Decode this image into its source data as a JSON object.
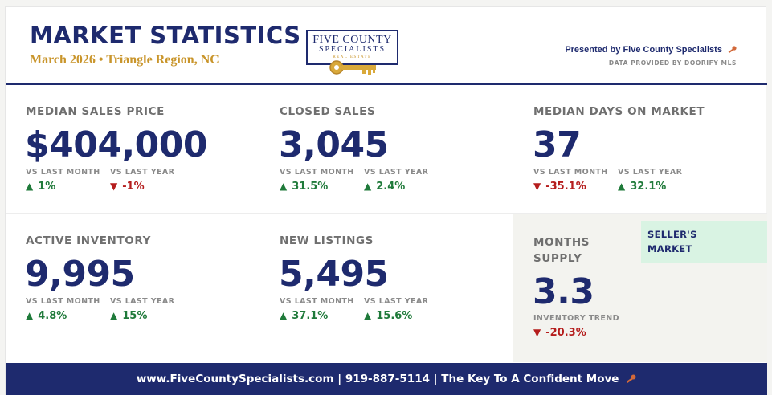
{
  "header": {
    "title": "MARKET STATISTICS",
    "subtitle": "March 2026 • Triangle Region, NC",
    "logo": {
      "line1": "FIVE COUNTY",
      "line2": "SPECIALISTS",
      "line3": "REAL ESTATE"
    },
    "presented_by": "Presented by Five County Specialists",
    "data_provided": "DATA PROVIDED BY DOORIFY MLS"
  },
  "stats": [
    {
      "label": "MEDIAN SALES PRICE",
      "value": "$404,000",
      "month_label": "VS LAST MONTH",
      "month_change": "1%",
      "month_dir": "up",
      "year_label": "VS LAST YEAR",
      "year_change": "-1%",
      "year_dir": "down"
    },
    {
      "label": "CLOSED SALES",
      "value": "3,045",
      "month_label": "VS LAST MONTH",
      "month_change": "31.5%",
      "month_dir": "up",
      "year_label": "VS LAST YEAR",
      "year_change": "2.4%",
      "year_dir": "up"
    },
    {
      "label": "MEDIAN DAYS ON MARKET",
      "value": "37",
      "month_label": "VS LAST MONTH",
      "month_change": "-35.1%",
      "month_dir": "down",
      "year_label": "VS LAST YEAR",
      "year_change": "32.1%",
      "year_dir": "up"
    },
    {
      "label": "ACTIVE INVENTORY",
      "value": "9,995",
      "month_label": "VS LAST MONTH",
      "month_change": "4.8%",
      "month_dir": "up",
      "year_label": "VS LAST YEAR",
      "year_change": "15%",
      "year_dir": "up"
    },
    {
      "label": "NEW LISTINGS",
      "value": "5,495",
      "month_label": "VS LAST MONTH",
      "month_change": "37.1%",
      "month_dir": "up",
      "year_label": "VS LAST YEAR",
      "year_change": "15.6%",
      "year_dir": "up"
    }
  ],
  "months_supply": {
    "label_line1": "MONTHS",
    "label_line2": "SUPPLY",
    "value": "3.3",
    "trend_label": "INVENTORY TREND",
    "trend_change": "-20.3%",
    "trend_dir": "down",
    "badge_line1": "SELLER'S",
    "badge_line2": "MARKET"
  },
  "footer": {
    "text": "www.FiveCountySpecialists.com | 919-887-5114  | The Key To A Confident Move"
  },
  "colors": {
    "navy": "#1e2a6e",
    "gold": "#c9952b",
    "up": "#1f7a3a",
    "down": "#b51d1d",
    "badge": "#d9f3e3"
  },
  "icons": {
    "up": "triangle-up-icon",
    "down": "triangle-down-icon",
    "key": "key-icon"
  }
}
